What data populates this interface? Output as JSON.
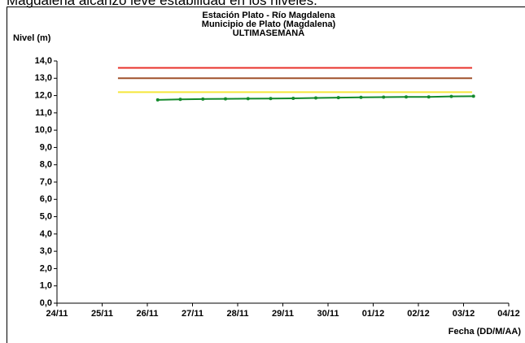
{
  "caption": "Magdalena alcanzó leve estabilidad en los niveles.",
  "chart_data": {
    "type": "line",
    "title": "Estación Plato - Río Magdalena",
    "subtitle": "Municipio de Plato (Magdalena)",
    "subtitle2": "ULTIMASEMANA",
    "y_label": "Nivel (m)",
    "x_label": "Fecha (DD/M/AA)",
    "xlim": [
      0,
      10
    ],
    "xticks": [
      {
        "value": 0,
        "label": "24/11"
      },
      {
        "value": 1,
        "label": "25/11"
      },
      {
        "value": 2,
        "label": "26/11"
      },
      {
        "value": 3,
        "label": "27/11"
      },
      {
        "value": 4,
        "label": "28/11"
      },
      {
        "value": 5,
        "label": "29/11"
      },
      {
        "value": 6,
        "label": "30/11"
      },
      {
        "value": 7,
        "label": "01/12"
      },
      {
        "value": 8,
        "label": "02/12"
      },
      {
        "value": 9,
        "label": "03/12"
      },
      {
        "value": 10,
        "label": "04/12"
      }
    ],
    "ylim": [
      0,
      14
    ],
    "yticks": [
      {
        "value": 0,
        "label": "0,0"
      },
      {
        "value": 1,
        "label": "1,0"
      },
      {
        "value": 2,
        "label": "2,0"
      },
      {
        "value": 3,
        "label": "3,0"
      },
      {
        "value": 4,
        "label": "4,0"
      },
      {
        "value": 5,
        "label": "5,0"
      },
      {
        "value": 6,
        "label": "6,0"
      },
      {
        "value": 7,
        "label": "7,0"
      },
      {
        "value": 8,
        "label": "8,0"
      },
      {
        "value": 9,
        "label": "9,0"
      },
      {
        "value": 10,
        "label": "10,0"
      },
      {
        "value": 11,
        "label": "11,0"
      },
      {
        "value": 12,
        "label": "12,0"
      },
      {
        "value": 13,
        "label": "13,0"
      },
      {
        "value": 14,
        "label": "14,0"
      }
    ],
    "series": [
      {
        "color": "#e8312a",
        "x": [
          1.35,
          9.19
        ],
        "values": [
          13.6,
          13.6
        ]
      },
      {
        "color": "#a0522d",
        "x": [
          1.35,
          9.19
        ],
        "values": [
          13.0,
          13.0
        ]
      },
      {
        "color": "#f5e63a",
        "x": [
          1.35,
          9.19
        ],
        "values": [
          12.2,
          12.2
        ]
      },
      {
        "color": "#138a2b",
        "markers": true,
        "x": [
          2.23,
          2.73,
          3.23,
          3.73,
          4.23,
          4.73,
          5.23,
          5.73,
          6.23,
          6.73,
          7.23,
          7.73,
          8.23,
          8.73,
          9.22
        ],
        "values": [
          11.75,
          11.78,
          11.8,
          11.81,
          11.82,
          11.83,
          11.84,
          11.86,
          11.88,
          11.9,
          11.91,
          11.92,
          11.92,
          11.95,
          11.96
        ]
      }
    ]
  }
}
